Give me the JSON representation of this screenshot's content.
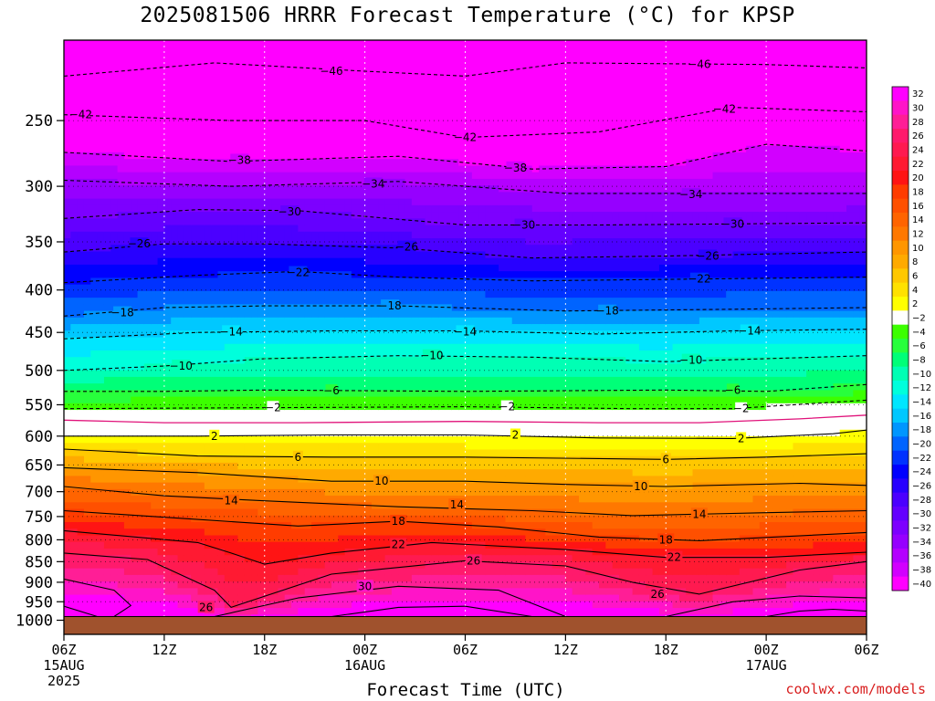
{
  "title": "2025081506 HRRR Forecast Temperature (°C) for KPSP",
  "credit": "coolwx.com/models",
  "chart_data": {
    "type": "heatmap",
    "title": "2025081506 HRRR Forecast Temperature (°C) for KPSP",
    "xlabel": "Forecast Time (UTC)",
    "ylabel": "",
    "x_ticks": [
      {
        "hour": 0,
        "lines": [
          "06Z",
          "15AUG",
          "2025"
        ]
      },
      {
        "hour": 6,
        "lines": [
          "12Z"
        ]
      },
      {
        "hour": 12,
        "lines": [
          "18Z"
        ]
      },
      {
        "hour": 18,
        "lines": [
          "00Z",
          "16AUG"
        ]
      },
      {
        "hour": 24,
        "lines": [
          "06Z"
        ]
      },
      {
        "hour": 30,
        "lines": [
          "12Z"
        ]
      },
      {
        "hour": 36,
        "lines": [
          "18Z"
        ]
      },
      {
        "hour": 42,
        "lines": [
          "00Z",
          "17AUG"
        ]
      },
      {
        "hour": 48,
        "lines": [
          "06Z"
        ]
      }
    ],
    "xlim": [
      0,
      48
    ],
    "y_ticks": [
      250,
      300,
      350,
      400,
      450,
      500,
      550,
      600,
      650,
      700,
      750,
      800,
      850,
      900,
      950,
      1000
    ],
    "ylim": [
      1040,
      200
    ],
    "y_scale": "log",
    "surface_pressure": 990,
    "grid": true,
    "colorbar": {
      "ticks": [
        32,
        30,
        28,
        26,
        24,
        22,
        20,
        18,
        16,
        14,
        12,
        10,
        8,
        6,
        4,
        2,
        -2,
        -4,
        -6,
        -8,
        -10,
        -12,
        -14,
        -16,
        -18,
        -20,
        -22,
        -24,
        -26,
        -28,
        -30,
        -32,
        -34,
        -36,
        -38,
        -40
      ],
      "colors": [
        "#ff00ff",
        "#ff14c8",
        "#ff1e96",
        "#ff1a6c",
        "#ff1a50",
        "#ff1a32",
        "#ff1414",
        "#ff3c00",
        "#ff5000",
        "#ff6400",
        "#ff7800",
        "#ff9600",
        "#ffaa00",
        "#ffc800",
        "#ffe100",
        "#ffff00",
        "#ffffff",
        "#3cff00",
        "#28ff3c",
        "#00ff78",
        "#00ffb4",
        "#00ffdc",
        "#00e6ff",
        "#00c8ff",
        "#0096ff",
        "#0064ff",
        "#0032ff",
        "#0000ff",
        "#2800ff",
        "#4b00ff",
        "#6400ff",
        "#7d00ff",
        "#9600ff",
        "#b400ff",
        "#d200ff",
        "#ff00ff"
      ]
    },
    "contours": [
      {
        "value": -46,
        "style": "dashed",
        "points": [
          [
            0,
            221
          ],
          [
            9,
            213
          ],
          [
            18,
            218
          ],
          [
            24,
            221
          ],
          [
            30,
            213
          ],
          [
            42,
            214
          ],
          [
            48,
            216
          ]
        ],
        "labels": [
          [
            16,
            218
          ],
          [
            38,
            214
          ]
        ]
      },
      {
        "value": -42,
        "style": "dashed",
        "points": [
          [
            0,
            246
          ],
          [
            10,
            250
          ],
          [
            18,
            250
          ],
          [
            24,
            262
          ],
          [
            32,
            258
          ],
          [
            40,
            241
          ],
          [
            48,
            244
          ]
        ],
        "labels": [
          [
            1,
            246
          ],
          [
            24,
            262
          ],
          [
            39.5,
            242
          ]
        ]
      },
      {
        "value": -38,
        "style": "dashed",
        "points": [
          [
            0,
            273
          ],
          [
            10,
            280
          ],
          [
            20,
            276
          ],
          [
            28,
            286
          ],
          [
            36,
            284
          ],
          [
            42,
            267
          ],
          [
            48,
            272
          ]
        ],
        "labels": [
          [
            10.5,
            279
          ],
          [
            27,
            285
          ]
        ]
      },
      {
        "value": -34,
        "style": "dashed",
        "points": [
          [
            0,
            295
          ],
          [
            10,
            300
          ],
          [
            20,
            296
          ],
          [
            30,
            306
          ],
          [
            38,
            306
          ],
          [
            48,
            306
          ]
        ],
        "labels": [
          [
            18.5,
            298
          ],
          [
            37.5,
            307
          ]
        ]
      },
      {
        "value": -30,
        "style": "dashed",
        "points": [
          [
            0,
            328
          ],
          [
            8,
            320
          ],
          [
            14,
            321
          ],
          [
            24,
            334
          ],
          [
            32,
            334
          ],
          [
            40,
            333
          ],
          [
            48,
            332
          ]
        ],
        "labels": [
          [
            13.5,
            322
          ],
          [
            27.5,
            334
          ],
          [
            40,
            333
          ]
        ]
      },
      {
        "value": -26,
        "style": "dashed",
        "points": [
          [
            0,
            360
          ],
          [
            6,
            352
          ],
          [
            12,
            352
          ],
          [
            20,
            356
          ],
          [
            28,
            366
          ],
          [
            36,
            364
          ],
          [
            48,
            360
          ]
        ],
        "labels": [
          [
            4.5,
            352
          ],
          [
            20.5,
            355
          ],
          [
            38.5,
            364
          ]
        ]
      },
      {
        "value": -22,
        "style": "dashed",
        "points": [
          [
            0,
            392
          ],
          [
            8,
            384
          ],
          [
            14,
            380
          ],
          [
            20,
            386
          ],
          [
            28,
            390
          ],
          [
            38,
            388
          ],
          [
            48,
            386
          ]
        ],
        "labels": [
          [
            14,
            381
          ],
          [
            38,
            388
          ]
        ]
      },
      {
        "value": -18,
        "style": "dashed",
        "points": [
          [
            0,
            430
          ],
          [
            6,
            420
          ],
          [
            12,
            418
          ],
          [
            20,
            418
          ],
          [
            30,
            424
          ],
          [
            40,
            422
          ],
          [
            48,
            420
          ]
        ],
        "labels": [
          [
            3.5,
            426
          ],
          [
            19.5,
            418
          ],
          [
            32.5,
            424
          ]
        ]
      },
      {
        "value": -14,
        "style": "dashed",
        "points": [
          [
            0,
            458
          ],
          [
            8,
            450
          ],
          [
            16,
            448
          ],
          [
            24,
            448
          ],
          [
            32,
            452
          ],
          [
            40,
            448
          ],
          [
            48,
            446
          ]
        ],
        "labels": [
          [
            10,
            449
          ],
          [
            24,
            449
          ],
          [
            41,
            448
          ]
        ]
      },
      {
        "value": -10,
        "style": "dashed",
        "points": [
          [
            0,
            500
          ],
          [
            6,
            494
          ],
          [
            12,
            484
          ],
          [
            20,
            480
          ],
          [
            28,
            482
          ],
          [
            36,
            488
          ],
          [
            48,
            480
          ]
        ],
        "labels": [
          [
            7,
            494
          ],
          [
            22,
            480
          ],
          [
            37.5,
            486
          ]
        ]
      },
      {
        "value": -6,
        "style": "dashed",
        "points": [
          [
            0,
            530
          ],
          [
            6,
            530
          ],
          [
            12,
            528
          ],
          [
            24,
            530
          ],
          [
            36,
            528
          ],
          [
            42,
            530
          ],
          [
            48,
            520
          ]
        ],
        "labels": [
          [
            16,
            529
          ],
          [
            40,
            528
          ]
        ]
      },
      {
        "value": -2,
        "style": "dashed",
        "points": [
          [
            0,
            556
          ],
          [
            8,
            555
          ],
          [
            16,
            554
          ],
          [
            24,
            553
          ],
          [
            34,
            556
          ],
          [
            40,
            556
          ],
          [
            48,
            543
          ]
        ],
        "labels": [
          [
            12.5,
            554
          ],
          [
            26.5,
            553
          ],
          [
            40.5,
            556
          ]
        ]
      },
      {
        "value": 0,
        "style": "magenta",
        "points": [
          [
            0,
            574
          ],
          [
            6,
            578
          ],
          [
            14,
            578
          ],
          [
            24,
            576
          ],
          [
            32,
            578
          ],
          [
            38,
            578
          ],
          [
            44,
            572
          ],
          [
            48,
            566
          ]
        ],
        "labels": []
      },
      {
        "value": 2,
        "style": "solid",
        "points": [
          [
            0,
            600
          ],
          [
            8,
            600
          ],
          [
            16,
            598
          ],
          [
            24,
            598
          ],
          [
            32,
            603
          ],
          [
            40,
            604
          ],
          [
            46,
            596
          ],
          [
            48,
            590
          ]
        ],
        "labels": [
          [
            9,
            600
          ],
          [
            27,
            598
          ],
          [
            40.5,
            604
          ]
        ]
      },
      {
        "value": 6,
        "style": "solid",
        "points": [
          [
            0,
            622
          ],
          [
            8,
            634
          ],
          [
            16,
            636
          ],
          [
            24,
            636
          ],
          [
            36,
            640
          ],
          [
            42,
            636
          ],
          [
            48,
            630
          ]
        ],
        "labels": [
          [
            14,
            636
          ],
          [
            36,
            640
          ]
        ]
      },
      {
        "value": 10,
        "style": "solid",
        "points": [
          [
            0,
            655
          ],
          [
            8,
            664
          ],
          [
            16,
            680
          ],
          [
            24,
            680
          ],
          [
            30,
            686
          ],
          [
            36,
            690
          ],
          [
            44,
            684
          ],
          [
            48,
            688
          ]
        ],
        "labels": [
          [
            19,
            680
          ],
          [
            34.5,
            690
          ]
        ]
      },
      {
        "value": 14,
        "style": "solid",
        "points": [
          [
            0,
            690
          ],
          [
            6,
            708
          ],
          [
            12,
            718
          ],
          [
            20,
            730
          ],
          [
            28,
            738
          ],
          [
            34,
            748
          ],
          [
            42,
            742
          ],
          [
            48,
            738
          ]
        ],
        "labels": [
          [
            10,
            718
          ],
          [
            23.5,
            726
          ],
          [
            38,
            745
          ]
        ]
      },
      {
        "value": 18,
        "style": "solid",
        "points": [
          [
            0,
            738
          ],
          [
            8,
            756
          ],
          [
            14,
            770
          ],
          [
            20,
            760
          ],
          [
            26,
            772
          ],
          [
            32,
            794
          ],
          [
            38,
            802
          ],
          [
            48,
            784
          ]
        ],
        "labels": [
          [
            20,
            760
          ],
          [
            36,
            800
          ]
        ]
      },
      {
        "value": 22,
        "style": "solid",
        "points": [
          [
            0,
            780
          ],
          [
            8,
            806
          ],
          [
            10,
            830
          ],
          [
            12,
            856
          ],
          [
            16,
            830
          ],
          [
            22,
            806
          ],
          [
            30,
            822
          ],
          [
            36,
            840
          ],
          [
            42,
            840
          ],
          [
            48,
            828
          ]
        ],
        "labels": [
          [
            20,
            810
          ],
          [
            36.5,
            840
          ]
        ]
      },
      {
        "value": 26,
        "style": "solid",
        "points": [
          [
            0,
            830
          ],
          [
            5,
            845
          ],
          [
            9,
            920
          ],
          [
            10,
            965
          ],
          [
            16,
            880
          ],
          [
            24,
            848
          ],
          [
            30,
            860
          ],
          [
            34,
            900
          ],
          [
            38,
            930
          ],
          [
            44,
            870
          ],
          [
            48,
            850
          ]
        ],
        "labels": [
          [
            8.5,
            965
          ],
          [
            24.5,
            848
          ],
          [
            35.5,
            930
          ]
        ]
      },
      {
        "value": 30,
        "style": "solid",
        "points": [
          [
            0,
            892
          ],
          [
            3,
            920
          ],
          [
            4,
            960
          ],
          [
            3,
            990
          ]
        ],
        "labels": []
      },
      {
        "value": 30,
        "style": "solid",
        "points": [
          [
            9,
            990
          ],
          [
            14,
            940
          ],
          [
            20,
            910
          ],
          [
            26,
            920
          ],
          [
            30,
            990
          ]
        ],
        "labels": [
          [
            18,
            910
          ]
        ]
      },
      {
        "value": 30,
        "style": "solid",
        "points": [
          [
            36,
            990
          ],
          [
            40,
            950
          ],
          [
            44,
            935
          ],
          [
            48,
            940
          ]
        ],
        "labels": []
      },
      {
        "value": 34,
        "style": "solid",
        "points": [
          [
            16,
            990
          ],
          [
            20,
            965
          ],
          [
            24,
            962
          ],
          [
            28,
            990
          ]
        ],
        "labels": []
      },
      {
        "value": 34,
        "style": "solid",
        "points": [
          [
            42,
            990
          ],
          [
            44,
            975
          ],
          [
            46,
            970
          ],
          [
            48,
            975
          ]
        ],
        "labels": []
      },
      {
        "value": 34,
        "style": "solid",
        "points": [
          [
            0,
            962
          ],
          [
            2,
            990
          ]
        ],
        "labels": []
      }
    ]
  }
}
